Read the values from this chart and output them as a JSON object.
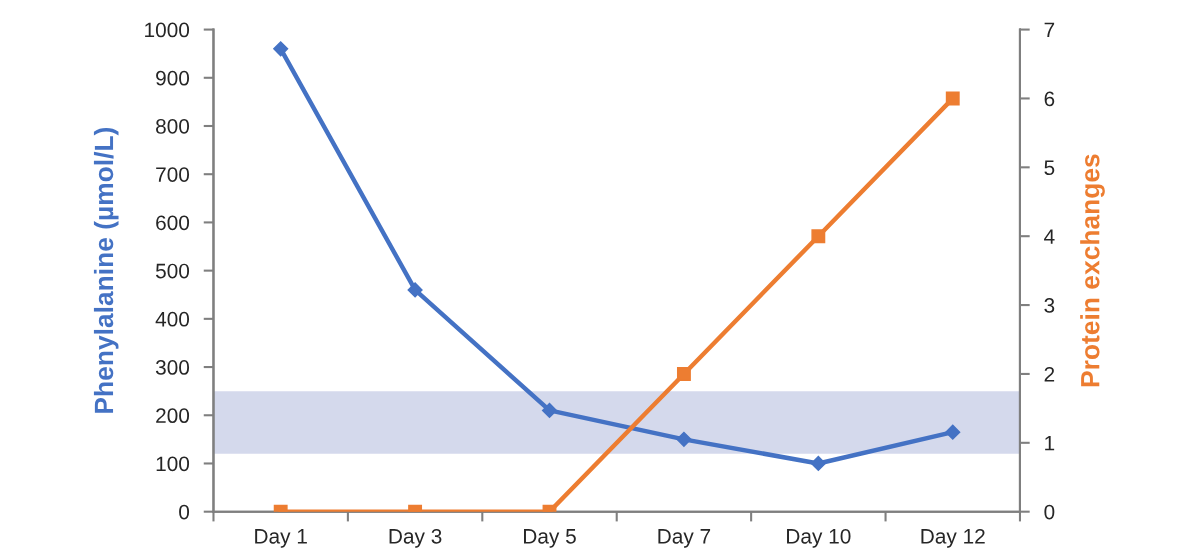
{
  "chart_data": {
    "type": "line",
    "categories": [
      "Day 1",
      "Day 3",
      "Day 5",
      "Day 7",
      "Day 10",
      "Day 12"
    ],
    "ylabel": "Phenylalanine (µmol/L)",
    "y2label": "Protein exchanges",
    "series": [
      {
        "color": "#4472c4",
        "marker": "diamond",
        "values": [
          960,
          460,
          210,
          150,
          100,
          165
        ]
      },
      {
        "color": "#ed7d31",
        "marker": "square",
        "axis": "y2",
        "values": [
          0,
          0,
          0,
          2,
          4,
          6
        ]
      }
    ],
    "ylim": [
      0,
      1000
    ],
    "yticks": [
      0,
      100,
      200,
      300,
      400,
      500,
      600,
      700,
      800,
      900,
      1000
    ],
    "y2lim": [
      0,
      7
    ],
    "y2ticks": [
      0,
      1,
      2,
      3,
      4,
      5,
      6,
      7
    ],
    "bands": [
      {
        "axis": "y",
        "from": 120,
        "to": 250,
        "color": "#d4d9ec"
      }
    ],
    "grid": false
  }
}
